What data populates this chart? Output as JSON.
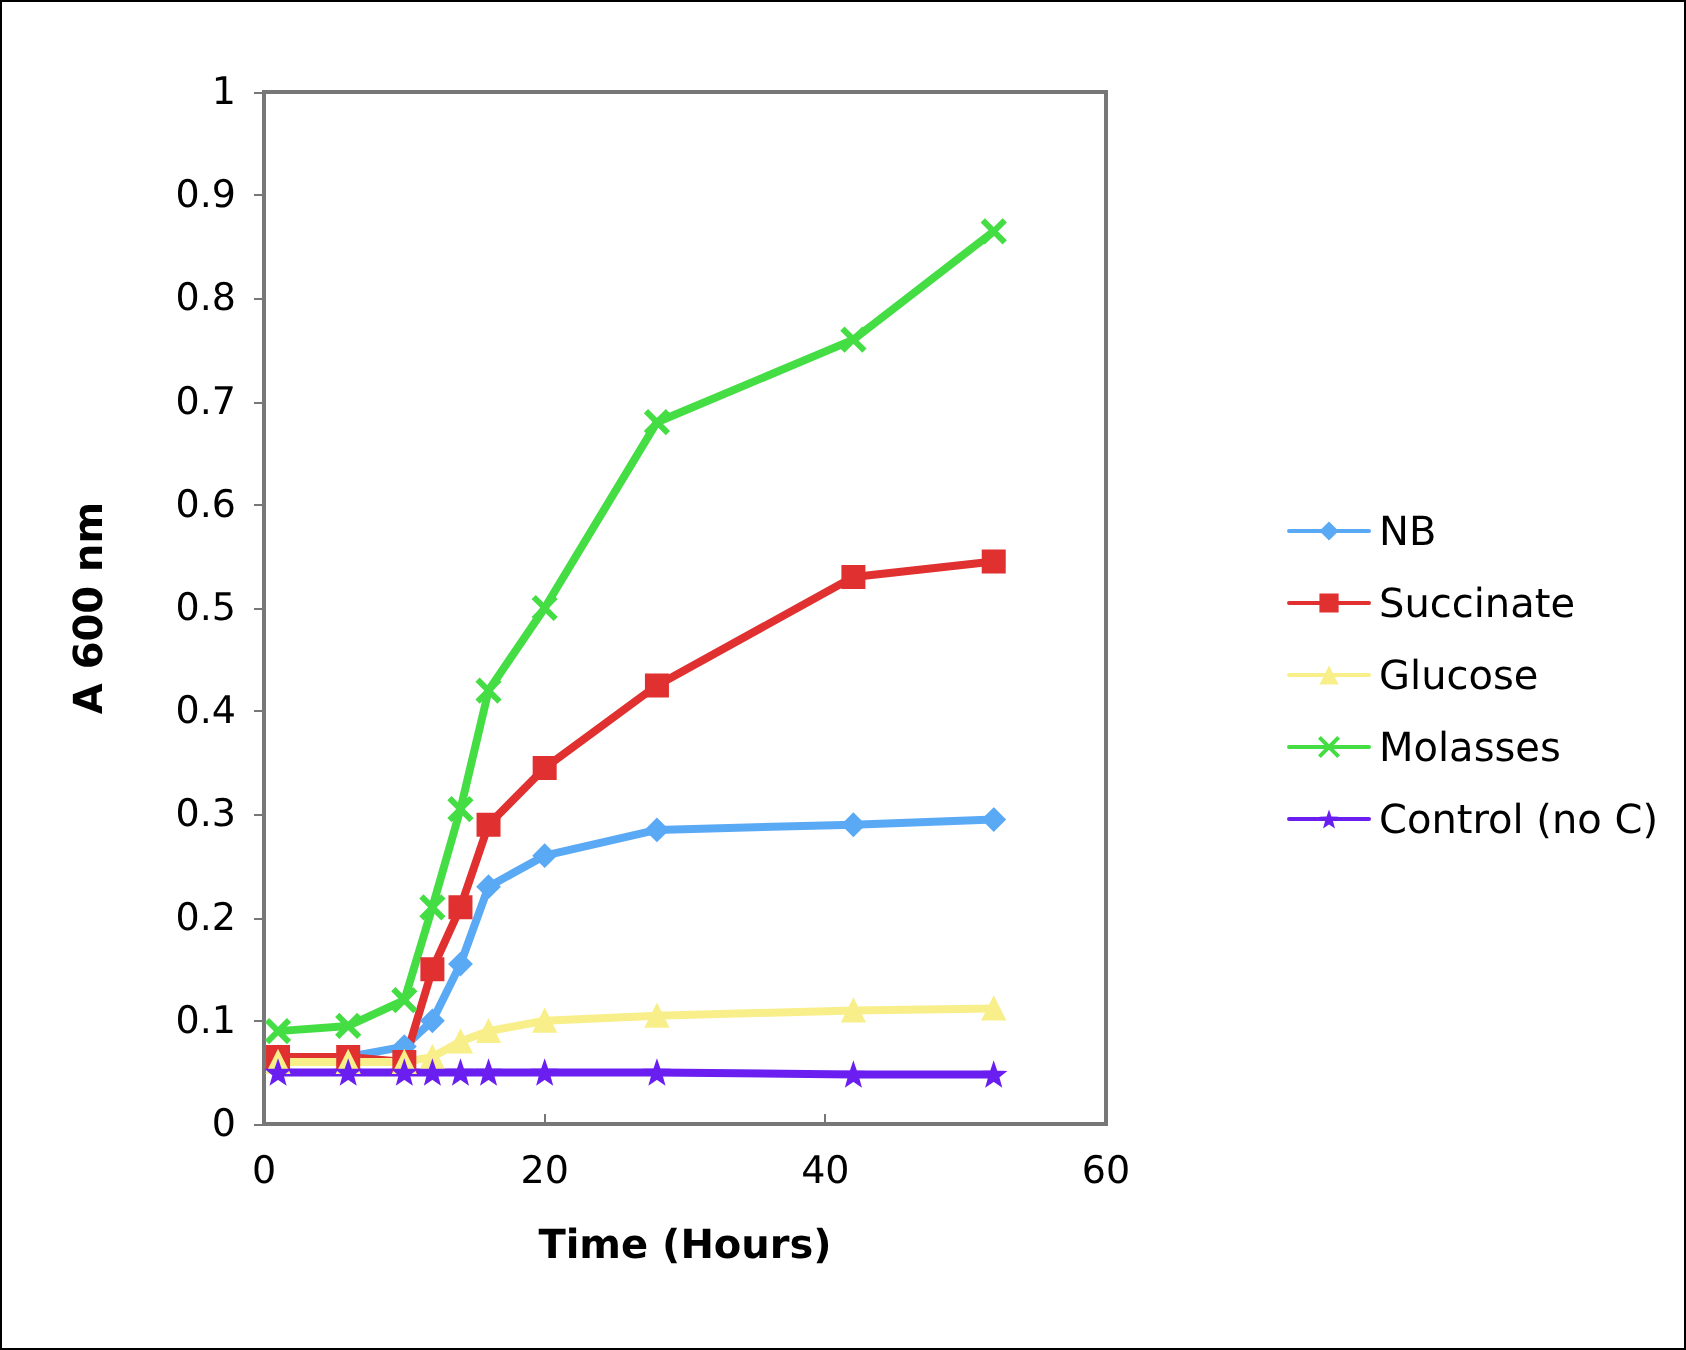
{
  "chart_data": {
    "type": "line",
    "xlabel": "Time (Hours)",
    "ylabel": "A 600 nm",
    "x": [
      1,
      6,
      10,
      12,
      14,
      16,
      20,
      28,
      42,
      52
    ],
    "series": [
      {
        "name": "NB",
        "color": "#5aa9f5",
        "marker": "diamond",
        "values": [
          0.065,
          0.065,
          0.075,
          0.1,
          0.155,
          0.23,
          0.26,
          0.285,
          0.29,
          0.295
        ]
      },
      {
        "name": "Succinate",
        "color": "#e03030",
        "marker": "square",
        "values": [
          0.065,
          0.065,
          0.06,
          0.15,
          0.21,
          0.29,
          0.345,
          0.425,
          0.53,
          0.545
        ]
      },
      {
        "name": "Glucose",
        "color": "#f8ef8a",
        "marker": "triangle",
        "values": [
          0.06,
          0.06,
          0.06,
          0.065,
          0.08,
          0.09,
          0.1,
          0.105,
          0.11,
          0.112
        ]
      },
      {
        "name": "Molasses",
        "color": "#44dd44",
        "marker": "cross",
        "values": [
          0.09,
          0.095,
          0.12,
          0.21,
          0.305,
          0.42,
          0.5,
          0.68,
          0.76,
          0.865
        ]
      },
      {
        "name": "Control (no C)",
        "color": "#6a1ff0",
        "marker": "star",
        "values": [
          0.05,
          0.05,
          0.05,
          0.05,
          0.05,
          0.05,
          0.05,
          0.05,
          0.048,
          0.048
        ]
      }
    ],
    "xlim": [
      0,
      60
    ],
    "xticks": [
      0,
      20,
      40,
      60
    ],
    "ylim": [
      0,
      1
    ],
    "yticks": [
      0,
      0.1,
      0.2,
      0.3,
      0.4,
      0.5,
      0.6,
      0.7,
      0.8,
      0.9,
      1
    ],
    "grid": false,
    "legend": "right",
    "line_style": "solid"
  }
}
